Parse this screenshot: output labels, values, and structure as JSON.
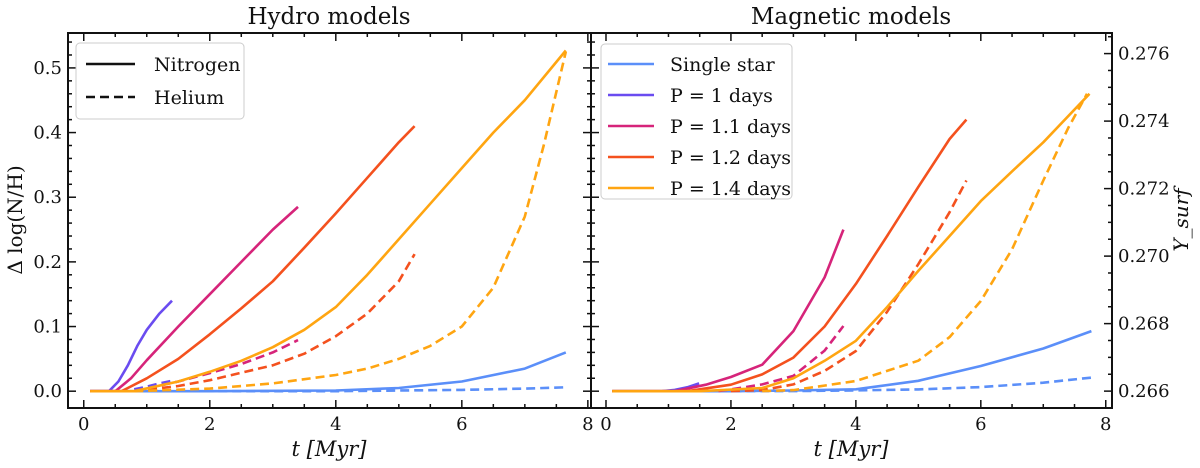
{
  "colors": {
    "Single star": "#5b8ff9",
    "P = 1 days": "#6a4cf0",
    "P = 1.1 days": "#d6247a",
    "P = 1.2 days": "#f4511e",
    "P = 1.4 days": "#ffa511",
    "axis": "#111111"
  },
  "chart_data": [
    {
      "type": "line",
      "title": "Hydro models",
      "xlabel": "t [Myr]",
      "ylabel": "Δ log(N/H)",
      "xlim": [
        -0.25,
        8.05
      ],
      "ylim": [
        -0.026,
        0.554
      ],
      "xticks": [
        "0",
        "2",
        "4",
        "6",
        "8"
      ],
      "yticks": [
        "0.0",
        "0.1",
        "0.2",
        "0.3",
        "0.4",
        "0.5"
      ],
      "grid": false,
      "legend": {
        "placement": "top-left",
        "entries": [
          {
            "label": "Nitrogen",
            "style": "solid"
          },
          {
            "label": "Helium",
            "style": "dashed"
          }
        ]
      },
      "series": [
        {
          "model": "Single star",
          "quantity": "Nitrogen",
          "style": "solid",
          "x": [
            0.1,
            2,
            4,
            5,
            6,
            7,
            7.65
          ],
          "y": [
            0,
            0,
            0.001,
            0.005,
            0.015,
            0.035,
            0.06
          ]
        },
        {
          "model": "Single star",
          "quantity": "Helium",
          "style": "dashed",
          "x": [
            0.8,
            4,
            5,
            6,
            7,
            7.65
          ],
          "y": [
            0,
            0,
            0.001,
            0.002,
            0.004,
            0.006
          ]
        },
        {
          "model": "P = 1 days",
          "quantity": "Nitrogen",
          "style": "solid",
          "x": [
            0.1,
            0.4,
            0.55,
            0.7,
            0.85,
            1.0,
            1.2,
            1.4
          ],
          "y": [
            0,
            0,
            0.015,
            0.04,
            0.07,
            0.095,
            0.12,
            0.14
          ]
        },
        {
          "model": "P = 1 days",
          "quantity": "Helium",
          "style": "dashed",
          "x": [
            0.8,
            1.0,
            1.2,
            1.4
          ],
          "y": [
            0.003,
            0.007,
            0.012,
            0.016
          ]
        },
        {
          "model": "P = 1.1 days",
          "quantity": "Nitrogen",
          "style": "solid",
          "x": [
            0.1,
            0.5,
            0.75,
            1.0,
            1.5,
            2.0,
            2.5,
            3.0,
            3.4
          ],
          "y": [
            0,
            0,
            0.02,
            0.048,
            0.1,
            0.15,
            0.2,
            0.25,
            0.285
          ]
        },
        {
          "model": "P = 1.1 days",
          "quantity": "Helium",
          "style": "dashed",
          "x": [
            0.8,
            1.0,
            1.5,
            2.0,
            2.5,
            3.0,
            3.4
          ],
          "y": [
            0,
            0.004,
            0.015,
            0.028,
            0.042,
            0.06,
            0.079
          ]
        },
        {
          "model": "P = 1.2 days",
          "quantity": "Nitrogen",
          "style": "solid",
          "x": [
            0.1,
            0.6,
            1.0,
            1.5,
            2.0,
            2.5,
            3.0,
            3.5,
            4.0,
            4.5,
            5.0,
            5.25
          ],
          "y": [
            0,
            0,
            0.02,
            0.05,
            0.088,
            0.128,
            0.17,
            0.222,
            0.275,
            0.33,
            0.385,
            0.41
          ]
        },
        {
          "model": "P = 1.2 days",
          "quantity": "Helium",
          "style": "dashed",
          "x": [
            0.8,
            1.5,
            2.0,
            3.0,
            3.5,
            4.0,
            4.5,
            5.0,
            5.25
          ],
          "y": [
            0,
            0.008,
            0.017,
            0.04,
            0.058,
            0.085,
            0.12,
            0.17,
            0.212
          ]
        },
        {
          "model": "P = 1.4 days",
          "quantity": "Nitrogen",
          "style": "solid",
          "x": [
            0.1,
            0.8,
            1.5,
            2.0,
            2.5,
            3.0,
            3.5,
            4.0,
            4.5,
            5.0,
            5.5,
            6.0,
            6.5,
            7.0,
            7.65
          ],
          "y": [
            0,
            0,
            0.015,
            0.03,
            0.047,
            0.068,
            0.095,
            0.13,
            0.18,
            0.235,
            0.29,
            0.345,
            0.4,
            0.45,
            0.527
          ]
        },
        {
          "model": "P = 1.4 days",
          "quantity": "Helium",
          "style": "dashed",
          "x": [
            0.8,
            2.0,
            3.0,
            4.0,
            4.5,
            5.0,
            5.5,
            6.0,
            6.5,
            7.0,
            7.3,
            7.65
          ],
          "y": [
            0,
            0.004,
            0.012,
            0.025,
            0.035,
            0.05,
            0.07,
            0.1,
            0.16,
            0.27,
            0.38,
            0.525
          ]
        }
      ]
    },
    {
      "type": "line",
      "title": "Magnetic models",
      "xlabel": "t [Myr]",
      "ylabel": "Δ log(N/H)",
      "ylabel_right": "Y_surf",
      "xlim": [
        -0.24,
        8.1
      ],
      "ylim": [
        -0.026,
        0.554
      ],
      "ylim_right": [
        0.2655,
        0.27661
      ],
      "xticks": [
        "0",
        "2",
        "4",
        "6",
        "8"
      ],
      "yticks_right": [
        "0.266",
        "0.268",
        "0.270",
        "0.272",
        "0.274",
        "0.276"
      ],
      "grid": false,
      "legend": {
        "placement": "top-left",
        "entries": [
          "Single star",
          "P = 1 days",
          "P = 1.1 days",
          "P = 1.2 days",
          "P = 1.4 days"
        ]
      },
      "series": [
        {
          "model": "Single star",
          "quantity": "Nitrogen",
          "style": "solid",
          "axis": "left",
          "x": [
            0.1,
            2,
            3,
            4,
            5,
            6,
            7,
            7.77
          ],
          "y": [
            0,
            0,
            0.001,
            0.003,
            0.016,
            0.039,
            0.066,
            0.093
          ]
        },
        {
          "model": "Single star",
          "quantity": "Helium",
          "style": "dashed",
          "axis": "right",
          "x": [
            1.8,
            3,
            4,
            5,
            6,
            7,
            7.77
          ],
          "y": [
            0.266,
            0.266,
            0.26602,
            0.26605,
            0.26612,
            0.26625,
            0.2664
          ]
        },
        {
          "model": "P = 1 days",
          "quantity": "Nitrogen",
          "style": "solid",
          "axis": "left",
          "x": [
            0.9,
            1.1,
            1.3,
            1.49
          ],
          "y": [
            0,
            0.002,
            0.006,
            0.012
          ]
        },
        {
          "model": "P = 1.1 days",
          "quantity": "Nitrogen",
          "style": "solid",
          "axis": "left",
          "x": [
            0.1,
            1.1,
            1.6,
            2.0,
            2.5,
            3.0,
            3.5,
            3.8
          ],
          "y": [
            0,
            0,
            0.01,
            0.022,
            0.041,
            0.093,
            0.176,
            0.25
          ]
        },
        {
          "model": "P = 1.1 days",
          "quantity": "Helium",
          "style": "dashed",
          "axis": "right",
          "x": [
            1.8,
            2.0,
            2.5,
            3.0,
            3.5,
            3.8
          ],
          "y": [
            0.266,
            0.26605,
            0.2662,
            0.26645,
            0.2672,
            0.26793
          ]
        },
        {
          "model": "P = 1.2 days",
          "quantity": "Nitrogen",
          "style": "solid",
          "axis": "left",
          "x": [
            0.1,
            1.3,
            2.0,
            2.5,
            3.0,
            3.5,
            4.0,
            4.5,
            5.0,
            5.5,
            5.77
          ],
          "y": [
            0,
            0,
            0.01,
            0.026,
            0.052,
            0.1,
            0.166,
            0.24,
            0.316,
            0.39,
            0.42
          ]
        },
        {
          "model": "P = 1.2 days",
          "quantity": "Helium",
          "style": "dashed",
          "axis": "right",
          "x": [
            2.0,
            2.5,
            3.0,
            3.5,
            4.0,
            4.5,
            5.0,
            5.5,
            5.77
          ],
          "y": [
            0.266,
            0.26603,
            0.2662,
            0.2666,
            0.26719,
            0.26835,
            0.26976,
            0.2713,
            0.27224
          ]
        },
        {
          "model": "P = 1.4 days",
          "quantity": "Nitrogen",
          "style": "solid",
          "axis": "left",
          "x": [
            0.1,
            1.5,
            2.5,
            3.0,
            3.5,
            4.0,
            4.5,
            5.0,
            5.5,
            6.0,
            6.5,
            7.0,
            7.74
          ],
          "y": [
            0,
            0,
            0.005,
            0.02,
            0.047,
            0.078,
            0.13,
            0.186,
            0.24,
            0.294,
            0.34,
            0.385,
            0.46
          ]
        },
        {
          "model": "P = 1.4 days",
          "quantity": "Helium",
          "style": "dashed",
          "axis": "right",
          "x": [
            2.5,
            3.0,
            4.0,
            5.0,
            5.5,
            6.0,
            6.5,
            7.0,
            7.4,
            7.7
          ],
          "y": [
            0.266,
            0.26603,
            0.2663,
            0.2669,
            0.2676,
            0.26867,
            0.2702,
            0.27224,
            0.2738,
            0.27481
          ]
        }
      ]
    }
  ]
}
